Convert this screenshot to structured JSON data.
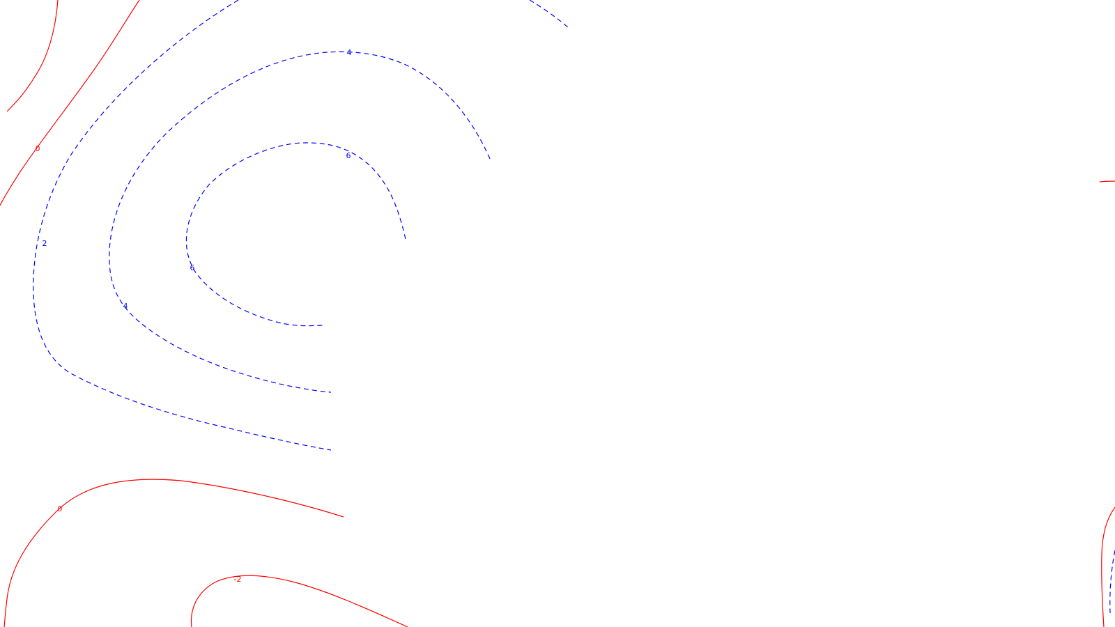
{
  "chart_data": {
    "type": "contour",
    "title": "",
    "xlabel": "",
    "ylabel": "",
    "grid": false,
    "colors": {
      "positive": "#0000ff",
      "zero_negative": "#ff0000"
    },
    "levels": [
      -2,
      0,
      2,
      4,
      6
    ],
    "contour_labels": [
      "6",
      "6",
      "4",
      "4",
      "2",
      "0",
      "0",
      "-2"
    ]
  }
}
